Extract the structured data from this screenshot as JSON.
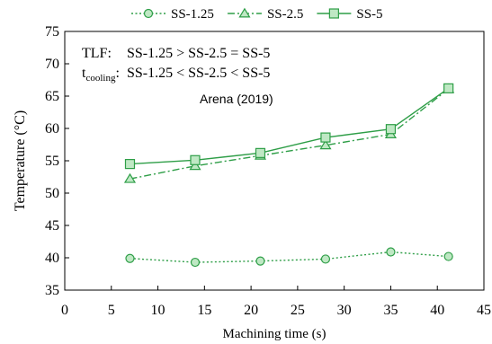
{
  "chart_data": {
    "type": "line",
    "title": "",
    "xlabel": "Machining time (s)",
    "ylabel": "Temperature (°C)",
    "xlim": [
      0,
      45
    ],
    "ylim": [
      35,
      75
    ],
    "x_ticks": [
      0,
      5,
      10,
      15,
      20,
      25,
      30,
      35,
      40,
      45
    ],
    "y_ticks": [
      35,
      40,
      45,
      50,
      55,
      60,
      65,
      70,
      75
    ],
    "grid": false,
    "legend_position": "top",
    "series": [
      {
        "name": "SS-1.25",
        "marker": "circle",
        "line_style": "dotted",
        "color": "#2e9e47",
        "fill": "#bfe8c4",
        "x": [
          7,
          14,
          21,
          28,
          35,
          41.2
        ],
        "y": [
          39.9,
          39.3,
          39.5,
          39.8,
          40.9,
          40.2
        ]
      },
      {
        "name": "SS-2.5",
        "marker": "triangle",
        "line_style": "dash-dot",
        "color": "#2e9e47",
        "fill": "#bfe8c4",
        "x": [
          7,
          14,
          21,
          28,
          35,
          41.2
        ],
        "y": [
          52.2,
          54.2,
          55.8,
          57.4,
          59.1,
          66.1
        ]
      },
      {
        "name": "SS-5",
        "marker": "square",
        "line_style": "solid",
        "color": "#2e9e47",
        "fill": "#bfe8c4",
        "x": [
          7,
          14,
          21,
          28,
          35,
          41.2
        ],
        "y": [
          54.5,
          55.1,
          56.2,
          58.6,
          59.9,
          66.2
        ]
      }
    ],
    "annotations": {
      "tlf_label": "TLF:",
      "tlf_text": "SS-1.25 > SS-2.5 = SS-5",
      "tcool_main": "t",
      "tcool_sub": "cooling",
      "tcool_colon": ":",
      "tcool_text": "SS-1.25 < SS-2.5 < SS-5",
      "source": "Arena (2019)"
    }
  }
}
